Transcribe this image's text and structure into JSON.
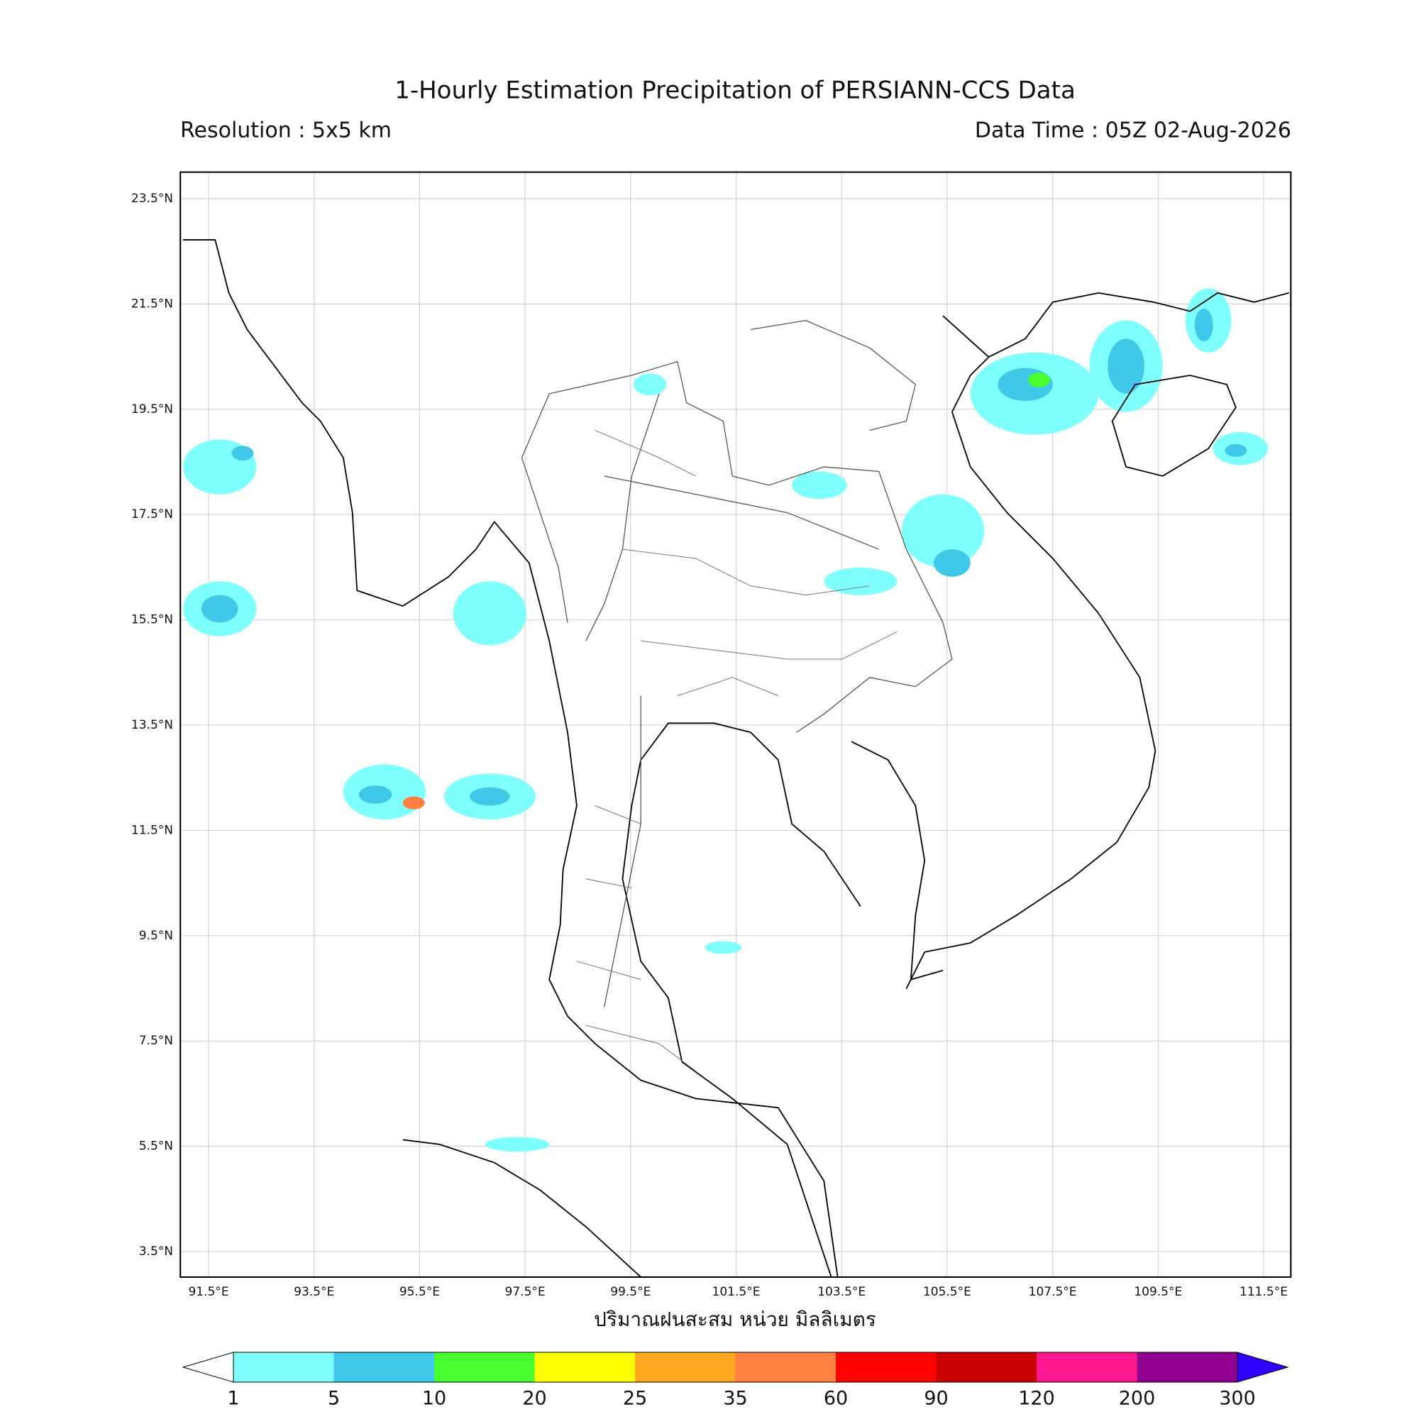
{
  "header": {
    "title": "1-Hourly Estimation Precipitation of PERSIANN-CCS Data",
    "resolution": "Resolution : 5x5 km",
    "data_time": "Data Time : 05Z 02-Aug-2026"
  },
  "map": {
    "lat_ticks": [
      "23.5°N",
      "21.5°N",
      "19.5°N",
      "17.5°N",
      "15.5°N",
      "13.5°N",
      "11.5°N",
      "9.5°N",
      "7.5°N",
      "5.5°N",
      "3.5°N"
    ],
    "lon_ticks": [
      "91.5°E",
      "93.5°E",
      "95.5°E",
      "97.5°E",
      "99.5°E",
      "101.5°E",
      "103.5°E",
      "105.5°E",
      "107.5°E",
      "109.5°E",
      "111.5°E"
    ],
    "xlabel": "ปริมาณฝนสะสม หน่วย มิลลิเมตร"
  },
  "colorbar": {
    "levels": [
      1,
      5,
      10,
      20,
      25,
      35,
      60,
      90,
      120,
      200,
      300
    ],
    "colors": [
      "#80ffff",
      "#40c8e8",
      "#48ff30",
      "#ffff00",
      "#ffa820",
      "#ff8040",
      "#ff0000",
      "#c80000",
      "#ff1890",
      "#900090"
    ],
    "under_color": "#ffffff",
    "over_color": "#3000ff"
  }
}
